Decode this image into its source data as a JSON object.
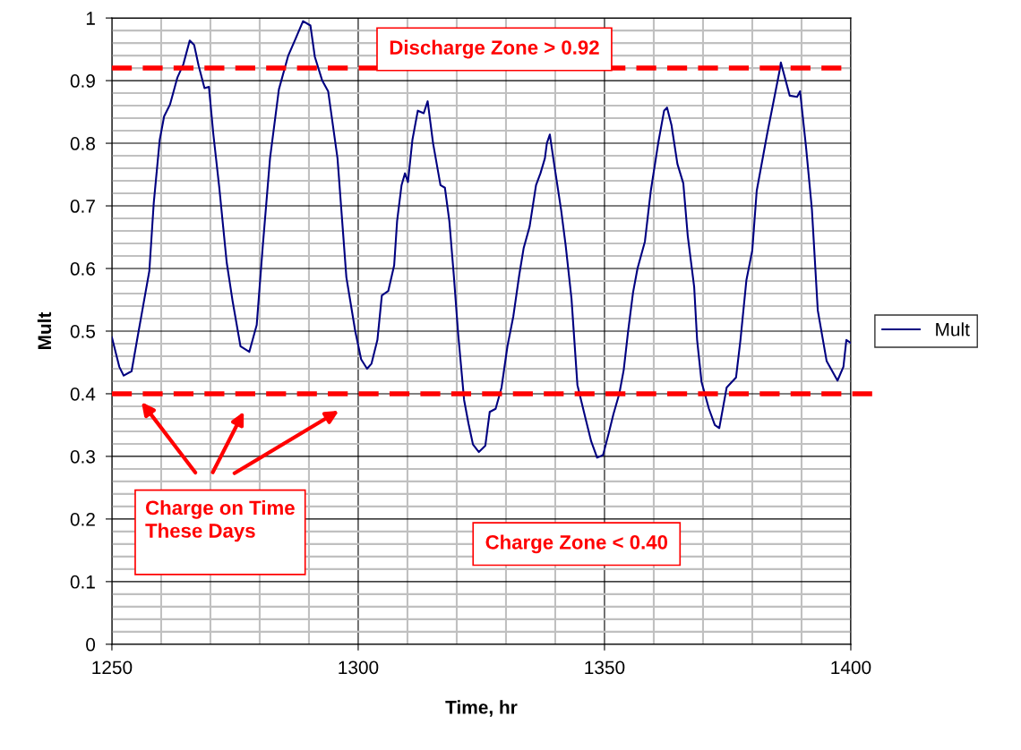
{
  "chart_data": {
    "type": "line",
    "xlabel": "Time, hr",
    "ylabel": "Mult",
    "xlim": [
      1250,
      1400
    ],
    "xticks": [
      1250,
      1300,
      1350,
      1400
    ],
    "ylim": [
      0,
      1
    ],
    "yticks": [
      0,
      0.1,
      0.2,
      0.3,
      0.4,
      0.5,
      0.6,
      0.7,
      0.8,
      0.9,
      1
    ],
    "grid": true,
    "legend": "right",
    "marker": "none",
    "line_style": "solid",
    "series": [
      {
        "name": "Mult",
        "color": "#000080",
        "x": [
          1250,
          1251.5,
          1252.4,
          1254,
          1255.2,
          1256.4,
          1257.6,
          1258.5,
          1259.7,
          1260.6,
          1261.8,
          1263.3,
          1264.5,
          1265.8,
          1266.7,
          1267.6,
          1268.8,
          1269.7,
          1270.6,
          1271.8,
          1273.3,
          1274.5,
          1276.1,
          1277.9,
          1279.4,
          1280.6,
          1282.1,
          1283.9,
          1285.8,
          1287.3,
          1288.8,
          1290.3,
          1291.2,
          1292.7,
          1293.9,
          1295.8,
          1297.6,
          1299.4,
          1300.6,
          1301.8,
          1302.7,
          1303.9,
          1304.8,
          1306.1,
          1307.3,
          1307.9,
          1308.8,
          1309.5,
          1310.1,
          1311,
          1312.1,
          1313.3,
          1314.1,
          1315.2,
          1316.7,
          1317.6,
          1318.5,
          1319.4,
          1320.3,
          1321.5,
          1322.4,
          1323.3,
          1324.5,
          1325.8,
          1326.7,
          1327.9,
          1329.1,
          1330.3,
          1331.5,
          1332.7,
          1333.6,
          1334.8,
          1336.1,
          1337,
          1337.9,
          1338.3,
          1338.9,
          1339.7,
          1341.2,
          1342.1,
          1343.3,
          1344.5,
          1346.1,
          1347.3,
          1348.5,
          1349.7,
          1350.9,
          1351.8,
          1353,
          1353.9,
          1354.8,
          1355.8,
          1356.7,
          1358.2,
          1359.4,
          1360.9,
          1362.1,
          1362.7,
          1363.6,
          1364.8,
          1366,
          1366.9,
          1368.2,
          1368.8,
          1369.7,
          1371.2,
          1372.4,
          1373.3,
          1374.8,
          1376.7,
          1377.6,
          1378.8,
          1380,
          1380.9,
          1383,
          1384.2,
          1385.5,
          1385.8,
          1387.6,
          1389.1,
          1389.7,
          1390.9,
          1392.1,
          1393.3,
          1395.1,
          1397.3,
          1398.5,
          1399.1,
          1400
        ],
        "values": [
          0.49,
          0.443,
          0.429,
          0.436,
          0.49,
          0.543,
          0.596,
          0.705,
          0.805,
          0.843,
          0.862,
          0.905,
          0.926,
          0.964,
          0.957,
          0.924,
          0.888,
          0.89,
          0.814,
          0.729,
          0.61,
          0.548,
          0.476,
          0.467,
          0.51,
          0.633,
          0.776,
          0.886,
          0.94,
          0.967,
          0.995,
          0.988,
          0.938,
          0.9,
          0.883,
          0.776,
          0.586,
          0.5,
          0.455,
          0.44,
          0.448,
          0.486,
          0.557,
          0.564,
          0.605,
          0.676,
          0.733,
          0.752,
          0.738,
          0.805,
          0.852,
          0.848,
          0.867,
          0.8,
          0.733,
          0.729,
          0.676,
          0.59,
          0.495,
          0.39,
          0.352,
          0.319,
          0.307,
          0.317,
          0.371,
          0.376,
          0.41,
          0.476,
          0.524,
          0.59,
          0.633,
          0.667,
          0.733,
          0.752,
          0.776,
          0.8,
          0.814,
          0.771,
          0.693,
          0.638,
          0.552,
          0.414,
          0.362,
          0.324,
          0.298,
          0.302,
          0.338,
          0.367,
          0.4,
          0.438,
          0.5,
          0.562,
          0.6,
          0.643,
          0.724,
          0.8,
          0.852,
          0.857,
          0.829,
          0.767,
          0.736,
          0.652,
          0.571,
          0.486,
          0.419,
          0.376,
          0.35,
          0.345,
          0.41,
          0.426,
          0.486,
          0.581,
          0.629,
          0.724,
          0.814,
          0.862,
          0.914,
          0.929,
          0.876,
          0.874,
          0.883,
          0.795,
          0.695,
          0.533,
          0.452,
          0.421,
          0.443,
          0.486,
          0.481
        ]
      }
    ],
    "ref_lines": [
      {
        "axis": "y",
        "value": 0.92,
        "label": "Discharge Zone > 0.92",
        "color": "#ff0000",
        "line_style": "dashed"
      },
      {
        "axis": "y",
        "value": 0.4,
        "label": "Charge Zone < 0.40",
        "color": "#ff0000",
        "line_style": "dashed"
      }
    ],
    "annotations": [
      "Charge on Time\nThese Days"
    ]
  }
}
